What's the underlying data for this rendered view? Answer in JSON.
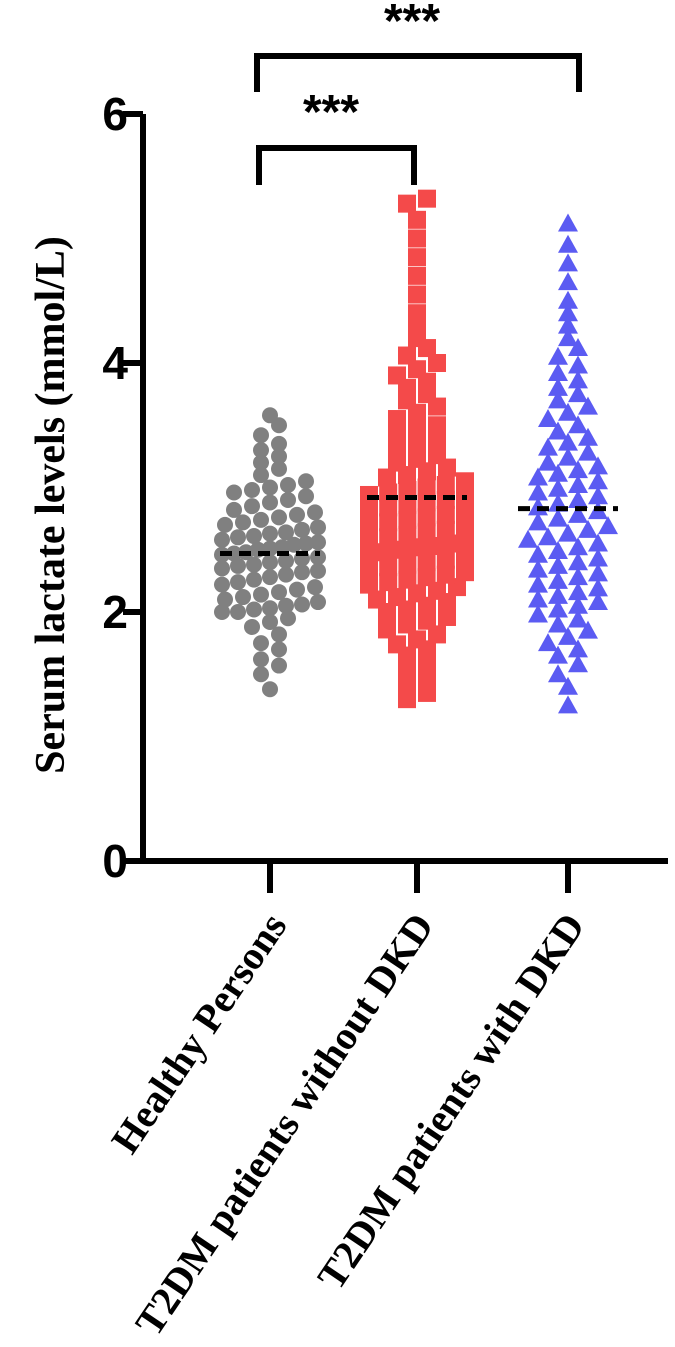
{
  "chart_data": {
    "type": "scatter",
    "ylabel": "Serum lactate levels (mmol/L)",
    "ylim": [
      0,
      6
    ],
    "yticks": [
      "0",
      "2",
      "4",
      "6"
    ],
    "categories": [
      "Healthy Persons",
      "T2DM patients without DKD",
      "T2DM patients with DKD"
    ],
    "series": [
      {
        "marker": "circle",
        "color": "#808080",
        "mean": 2.47,
        "values": [
          1.38,
          1.5,
          1.57,
          1.62,
          1.7,
          1.75,
          1.82,
          1.88,
          1.92,
          1.95,
          2.0,
          2.0,
          2.02,
          2.03,
          2.05,
          2.06,
          2.08,
          2.1,
          2.12,
          2.14,
          2.16,
          2.18,
          2.2,
          2.22,
          2.24,
          2.26,
          2.28,
          2.3,
          2.32,
          2.33,
          2.35,
          2.37,
          2.38,
          2.4,
          2.41,
          2.43,
          2.44,
          2.46,
          2.47,
          2.48,
          2.5,
          2.51,
          2.52,
          2.54,
          2.55,
          2.56,
          2.58,
          2.6,
          2.61,
          2.63,
          2.64,
          2.66,
          2.68,
          2.7,
          2.72,
          2.74,
          2.76,
          2.78,
          2.8,
          2.82,
          2.85,
          2.88,
          2.9,
          2.93,
          2.96,
          2.98,
          3.0,
          3.02,
          3.05,
          3.1,
          3.15,
          3.2,
          3.25,
          3.3,
          3.35,
          3.42,
          3.5,
          3.58
        ]
      },
      {
        "marker": "square",
        "color": "#f44a4a",
        "mean": 2.92,
        "values": [
          1.3,
          1.35,
          1.42,
          1.48,
          1.55,
          1.6,
          1.65,
          1.7,
          1.74,
          1.78,
          1.82,
          1.86,
          1.9,
          1.93,
          1.96,
          2.0,
          2.02,
          2.05,
          2.08,
          2.1,
          2.12,
          2.15,
          2.17,
          2.2,
          2.22,
          2.24,
          2.26,
          2.28,
          2.3,
          2.32,
          2.34,
          2.36,
          2.38,
          2.4,
          2.42,
          2.44,
          2.46,
          2.48,
          2.5,
          2.52,
          2.53,
          2.55,
          2.56,
          2.58,
          2.6,
          2.62,
          2.64,
          2.66,
          2.68,
          2.7,
          2.72,
          2.74,
          2.76,
          2.78,
          2.8,
          2.82,
          2.84,
          2.86,
          2.88,
          2.9,
          2.92,
          2.94,
          2.96,
          2.98,
          3.0,
          3.02,
          3.05,
          3.08,
          3.1,
          3.13,
          3.16,
          3.2,
          3.23,
          3.26,
          3.3,
          3.34,
          3.38,
          3.42,
          3.46,
          3.5,
          3.55,
          3.6,
          3.65,
          3.7,
          3.75,
          3.8,
          3.85,
          3.9,
          3.95,
          4.0,
          4.06,
          4.12,
          4.2,
          4.3,
          4.4,
          4.55,
          4.7,
          4.85,
          5.0,
          5.15,
          5.28,
          5.32
        ]
      },
      {
        "marker": "triangle",
        "color": "#5b5bf2",
        "mean": 2.83,
        "values": [
          1.25,
          1.4,
          1.5,
          1.58,
          1.65,
          1.7,
          1.75,
          1.8,
          1.85,
          1.9,
          1.94,
          1.98,
          2.02,
          2.05,
          2.08,
          2.1,
          2.13,
          2.16,
          2.19,
          2.22,
          2.25,
          2.28,
          2.31,
          2.34,
          2.37,
          2.4,
          2.43,
          2.46,
          2.49,
          2.52,
          2.55,
          2.58,
          2.6,
          2.63,
          2.66,
          2.69,
          2.72,
          2.75,
          2.78,
          2.81,
          2.84,
          2.87,
          2.9,
          2.93,
          2.96,
          2.99,
          3.02,
          3.05,
          3.08,
          3.11,
          3.14,
          3.17,
          3.2,
          3.24,
          3.28,
          3.32,
          3.36,
          3.4,
          3.45,
          3.5,
          3.55,
          3.6,
          3.65,
          3.7,
          3.75,
          3.8,
          3.86,
          3.92,
          3.98,
          4.05,
          4.12,
          4.2,
          4.3,
          4.4,
          4.5,
          4.65,
          4.8,
          4.95,
          5.12
        ]
      }
    ],
    "annotations": [
      {
        "text": "***",
        "from": 0,
        "to": 1
      },
      {
        "text": "***",
        "from": 0,
        "to": 2
      }
    ]
  }
}
